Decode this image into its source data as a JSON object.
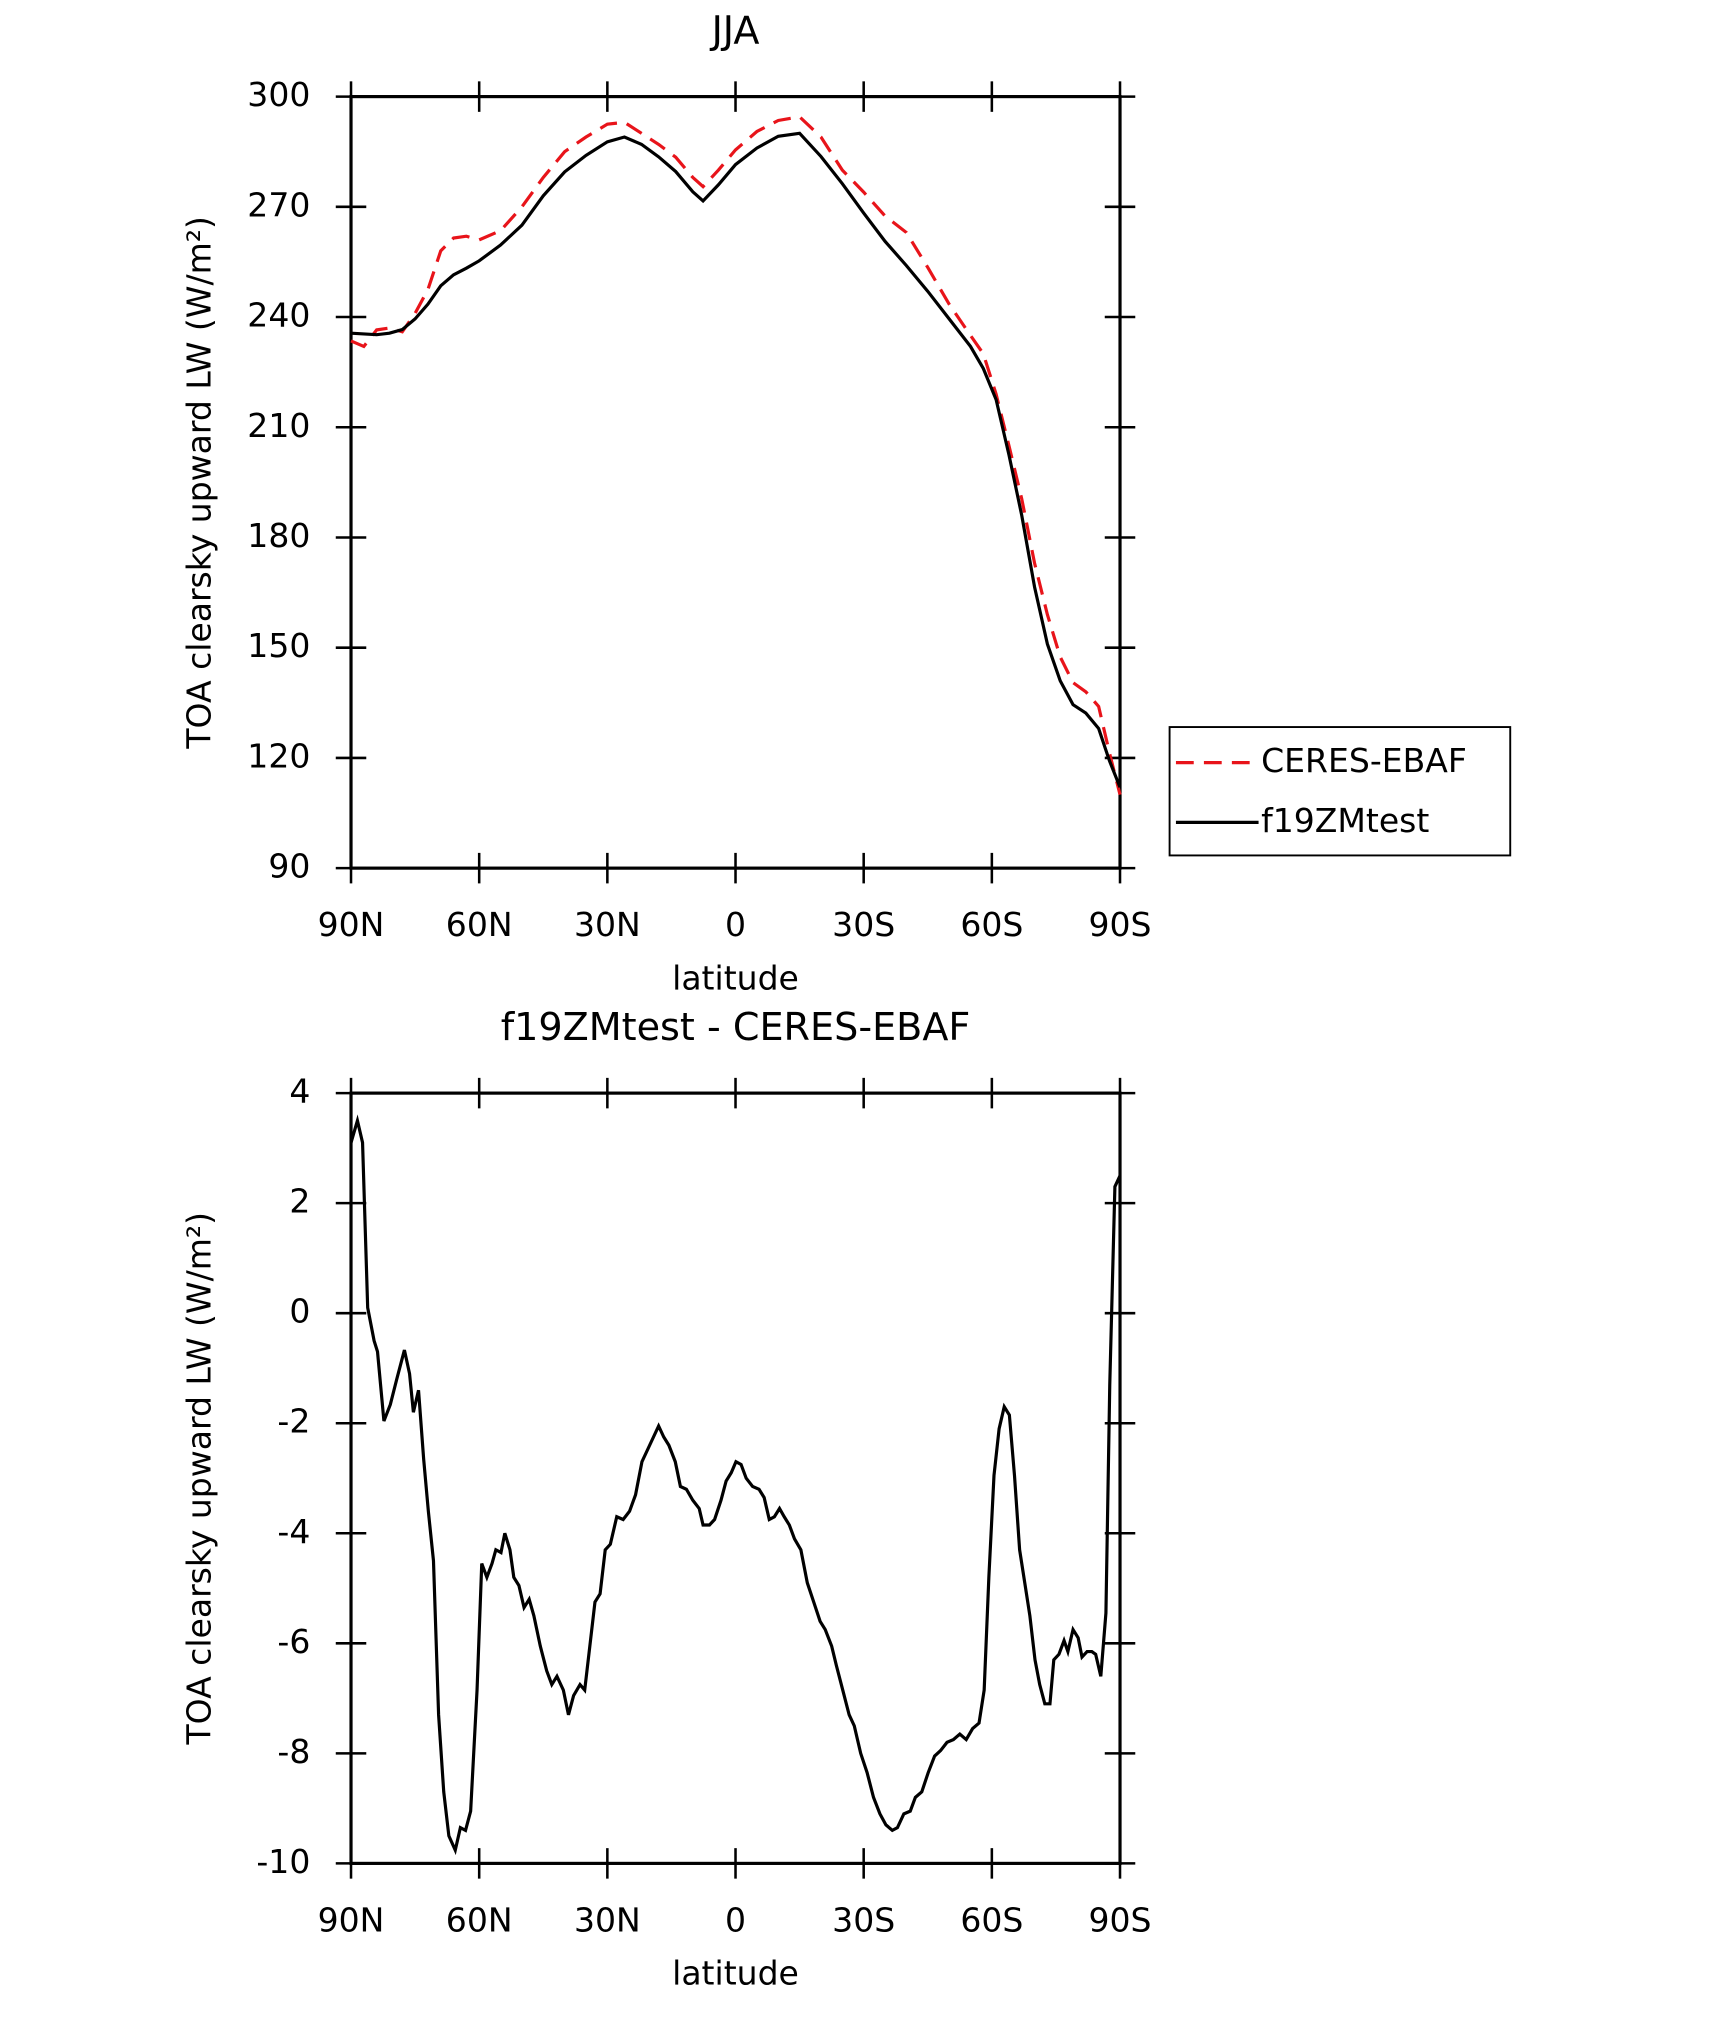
{
  "chart_data": [
    {
      "type": "line",
      "title": "JJA",
      "x_label": "latitude",
      "y_label": "TOA clearsky upward LW (W/m²)",
      "x": [
        90,
        87,
        84,
        81,
        78,
        75,
        72,
        69,
        66,
        63,
        60,
        55,
        50,
        45,
        40,
        35,
        30,
        26,
        22,
        18,
        14,
        10,
        7.6,
        4,
        0,
        -5,
        -10,
        -15,
        -20,
        -25,
        -30,
        -35,
        -40,
        -45,
        -50,
        -55,
        -58,
        -61,
        -64,
        -67,
        -70,
        -73,
        -76,
        -79,
        -82,
        -85,
        -87.5,
        -90
      ],
      "series": [
        {
          "name": "CERES-EBAF",
          "color": "#e8141a",
          "dashed": true,
          "values": [
            233.5,
            232,
            236.5,
            237,
            236,
            241,
            247.5,
            258,
            261.5,
            262,
            261,
            263.5,
            270,
            278,
            285,
            289,
            292.5,
            293,
            290,
            287,
            283.5,
            278,
            275.5,
            280,
            285.5,
            290.5,
            293.5,
            294.5,
            289,
            280,
            274,
            267.5,
            263,
            253.5,
            243.5,
            235,
            230,
            219,
            205,
            190.5,
            173,
            159,
            147.5,
            140.5,
            138,
            134,
            121.5,
            110
          ]
        },
        {
          "name": "f19ZMtest",
          "color": "#000000",
          "dashed": false,
          "values": [
            235.6,
            235.4,
            235.2,
            235.6,
            236.6,
            239.5,
            243.5,
            248.5,
            251.5,
            253.3,
            255.3,
            259.6,
            265,
            273,
            279.5,
            284,
            287.7,
            289,
            287,
            283.6,
            279.6,
            274.1,
            271.6,
            276,
            281.5,
            286,
            289.2,
            290,
            283.7,
            276.3,
            268.3,
            260.6,
            254,
            247,
            239.5,
            232,
            226,
            217.5,
            202.5,
            186,
            166.5,
            151,
            141,
            134.5,
            132.2,
            128,
            119.3,
            112
          ]
        }
      ],
      "xlim": [
        90,
        -90
      ],
      "ylim": [
        90,
        300
      ],
      "xticks": [
        {
          "value": 90,
          "label": "90N"
        },
        {
          "value": 60,
          "label": "60N"
        },
        {
          "value": 30,
          "label": "30N"
        },
        0,
        {
          "value": -30,
          "label": "30S"
        },
        {
          "value": -60,
          "label": "60S"
        },
        {
          "value": -90,
          "label": "90S"
        }
      ],
      "yticks": [
        90,
        120,
        150,
        180,
        210,
        240,
        270,
        300
      ],
      "legend": "outside right"
    },
    {
      "type": "line",
      "title": "f19ZMtest - CERES-EBAF",
      "x_label": "latitude",
      "y_label": "TOA clearsky upward LW (W/m²)",
      "color": "#000000",
      "x": [
        90,
        88.5,
        87.3,
        86.1,
        84.6,
        83.8,
        82.3,
        80.8,
        79.3,
        77.5,
        76.3,
        75.4,
        74.2,
        73,
        71.9,
        70.7,
        69.5,
        68.3,
        67.1,
        65.6,
        64.4,
        63.2,
        62,
        60.5,
        59.4,
        58.2,
        57,
        56.1,
        54.9,
        54,
        52.8,
        51.9,
        50.7,
        49.5,
        48.3,
        47.2,
        45.7,
        44.2,
        43,
        41.8,
        40.3,
        39.1,
        37.9,
        36.4,
        35.3,
        34.1,
        32.9,
        31.7,
        30.5,
        29.3,
        27.8,
        26.3,
        24.8,
        23.4,
        21.9,
        20.4,
        18.9,
        18,
        16.8,
        15.6,
        14.1,
        12.9,
        11.5,
        10,
        8.5,
        7.6,
        6.1,
        4.9,
        3.4,
        2.2,
        1,
        -0.1,
        -1.3,
        -2.5,
        -4,
        -5.5,
        -6.7,
        -7.9,
        -9.1,
        -10.3,
        -11.4,
        -12.6,
        -13.8,
        -15.3,
        -16.8,
        -18.3,
        -19.8,
        -21,
        -22.5,
        -23.6,
        -25.1,
        -26.6,
        -27.8,
        -29.3,
        -30.8,
        -32.3,
        -33.8,
        -35.2,
        -36.7,
        -37.9,
        -39.4,
        -40.9,
        -42.1,
        -43.6,
        -45.1,
        -46.6,
        -48,
        -49.5,
        -51,
        -52.5,
        -54,
        -55.5,
        -57,
        -58.2,
        -59.3,
        -60.5,
        -61.7,
        -62.9,
        -64.1,
        -65.3,
        -66.5,
        -67.7,
        -68.9,
        -70.1,
        -71.2,
        -72.4,
        -73.6,
        -74.5,
        -75.7,
        -76.9,
        -77.8,
        -79,
        -80.2,
        -81.1,
        -82.3,
        -83.4,
        -84.3,
        -85.5,
        -86.7,
        -87.6,
        -88.8,
        -90
      ],
      "values": [
        3.1,
        3.5,
        3.1,
        0.1,
        -0.5,
        -0.7,
        -1.96,
        -1.66,
        -1.2,
        -0.67,
        -1.1,
        -1.8,
        -1.4,
        -2.65,
        -3.6,
        -4.5,
        -7.3,
        -8.7,
        -9.5,
        -9.76,
        -9.35,
        -9.4,
        -9.05,
        -6.85,
        -4.55,
        -4.8,
        -4.55,
        -4.3,
        -4.35,
        -4,
        -4.3,
        -4.8,
        -4.95,
        -5.35,
        -5.2,
        -5.5,
        -6.05,
        -6.5,
        -6.75,
        -6.6,
        -6.85,
        -7.3,
        -6.95,
        -6.75,
        -6.85,
        -6.05,
        -5.25,
        -5.1,
        -4.3,
        -4.2,
        -3.7,
        -3.75,
        -3.6,
        -3.3,
        -2.7,
        -2.45,
        -2.2,
        -2.05,
        -2.25,
        -2.4,
        -2.7,
        -3.15,
        -3.2,
        -3.4,
        -3.55,
        -3.85,
        -3.85,
        -3.75,
        -3.4,
        -3.05,
        -2.9,
        -2.7,
        -2.75,
        -3,
        -3.15,
        -3.2,
        -3.35,
        -3.75,
        -3.7,
        -3.55,
        -3.7,
        -3.85,
        -4.1,
        -4.3,
        -4.9,
        -5.25,
        -5.6,
        -5.75,
        -6.05,
        -6.4,
        -6.85,
        -7.3,
        -7.5,
        -8,
        -8.35,
        -8.8,
        -9.1,
        -9.3,
        -9.4,
        -9.35,
        -9.1,
        -9.05,
        -8.8,
        -8.7,
        -8.35,
        -8.05,
        -7.95,
        -7.8,
        -7.75,
        -7.65,
        -7.75,
        -7.55,
        -7.45,
        -6.85,
        -4.8,
        -2.95,
        -2.1,
        -1.7,
        -1.85,
        -2.95,
        -4.3,
        -4.9,
        -5.5,
        -6.3,
        -6.75,
        -7.1,
        -7.1,
        -6.3,
        -6.2,
        -5.95,
        -6.15,
        -5.75,
        -5.9,
        -6.25,
        -6.15,
        -6.15,
        -6.2,
        -6.6,
        -5.45,
        -1.3,
        2.3,
        2.5
      ],
      "xlim": [
        90,
        -90
      ],
      "ylim": [
        -10,
        4
      ],
      "xticks": [
        {
          "value": 90,
          "label": "90N"
        },
        {
          "value": 60,
          "label": "60N"
        },
        {
          "value": 30,
          "label": "30N"
        },
        0,
        {
          "value": -30,
          "label": "30S"
        },
        {
          "value": -60,
          "label": "60S"
        },
        {
          "value": -90,
          "label": "90S"
        }
      ],
      "yticks": [
        -10,
        -8,
        -6,
        -4,
        -2,
        0,
        2,
        4
      ]
    }
  ]
}
